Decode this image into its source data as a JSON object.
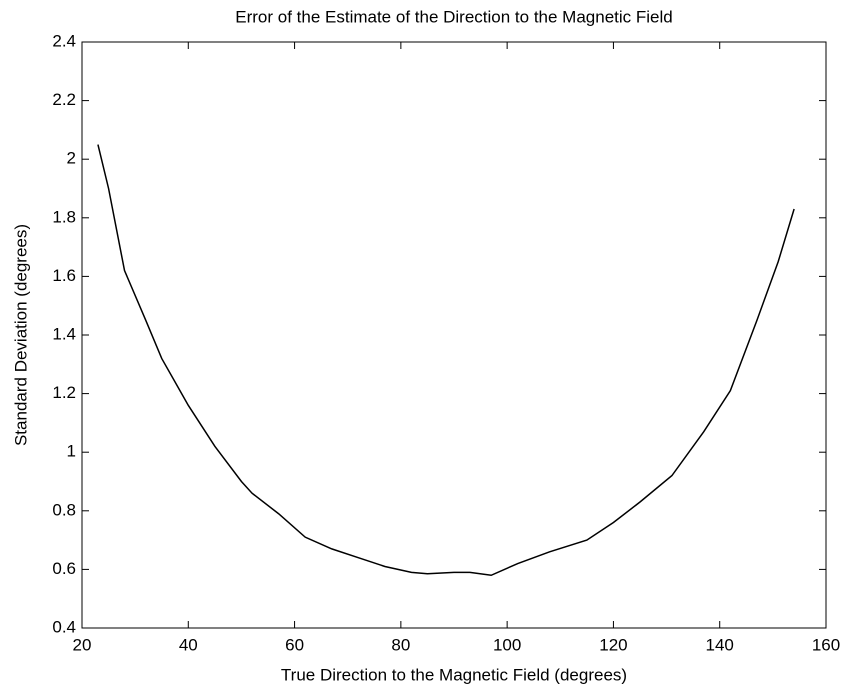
{
  "chart_data": {
    "type": "line",
    "title": "Error of the Estimate of the Direction to the Magnetic Field",
    "x_label": "True Direction to the Magnetic Field (degrees)",
    "y_label": "Standard Deviation (degrees)",
    "x": [
      23,
      25,
      28,
      32,
      35,
      40,
      45,
      50,
      52,
      57,
      62,
      67,
      72,
      77,
      82,
      85,
      90,
      93,
      97,
      102,
      108,
      115,
      120,
      125,
      131,
      137,
      142,
      147,
      151,
      154
    ],
    "series": [
      {
        "name": "Standard Deviation",
        "color": "#000000",
        "values": [
          2.05,
          1.9,
          1.62,
          1.45,
          1.32,
          1.16,
          1.02,
          0.9,
          0.86,
          0.79,
          0.71,
          0.67,
          0.64,
          0.61,
          0.59,
          0.585,
          0.59,
          0.59,
          0.58,
          0.62,
          0.66,
          0.7,
          0.76,
          0.83,
          0.92,
          1.07,
          1.21,
          1.45,
          1.65,
          1.83
        ]
      }
    ],
    "xlim": [
      20,
      160
    ],
    "xticks": [
      20,
      40,
      60,
      80,
      100,
      120,
      140,
      160
    ],
    "ylim": [
      0.4,
      2.4
    ],
    "yticks": [
      0.4,
      0.6,
      0.8,
      1,
      1.2,
      1.4,
      1.6,
      1.8,
      2,
      2.2,
      2.4
    ],
    "grid": false
  }
}
